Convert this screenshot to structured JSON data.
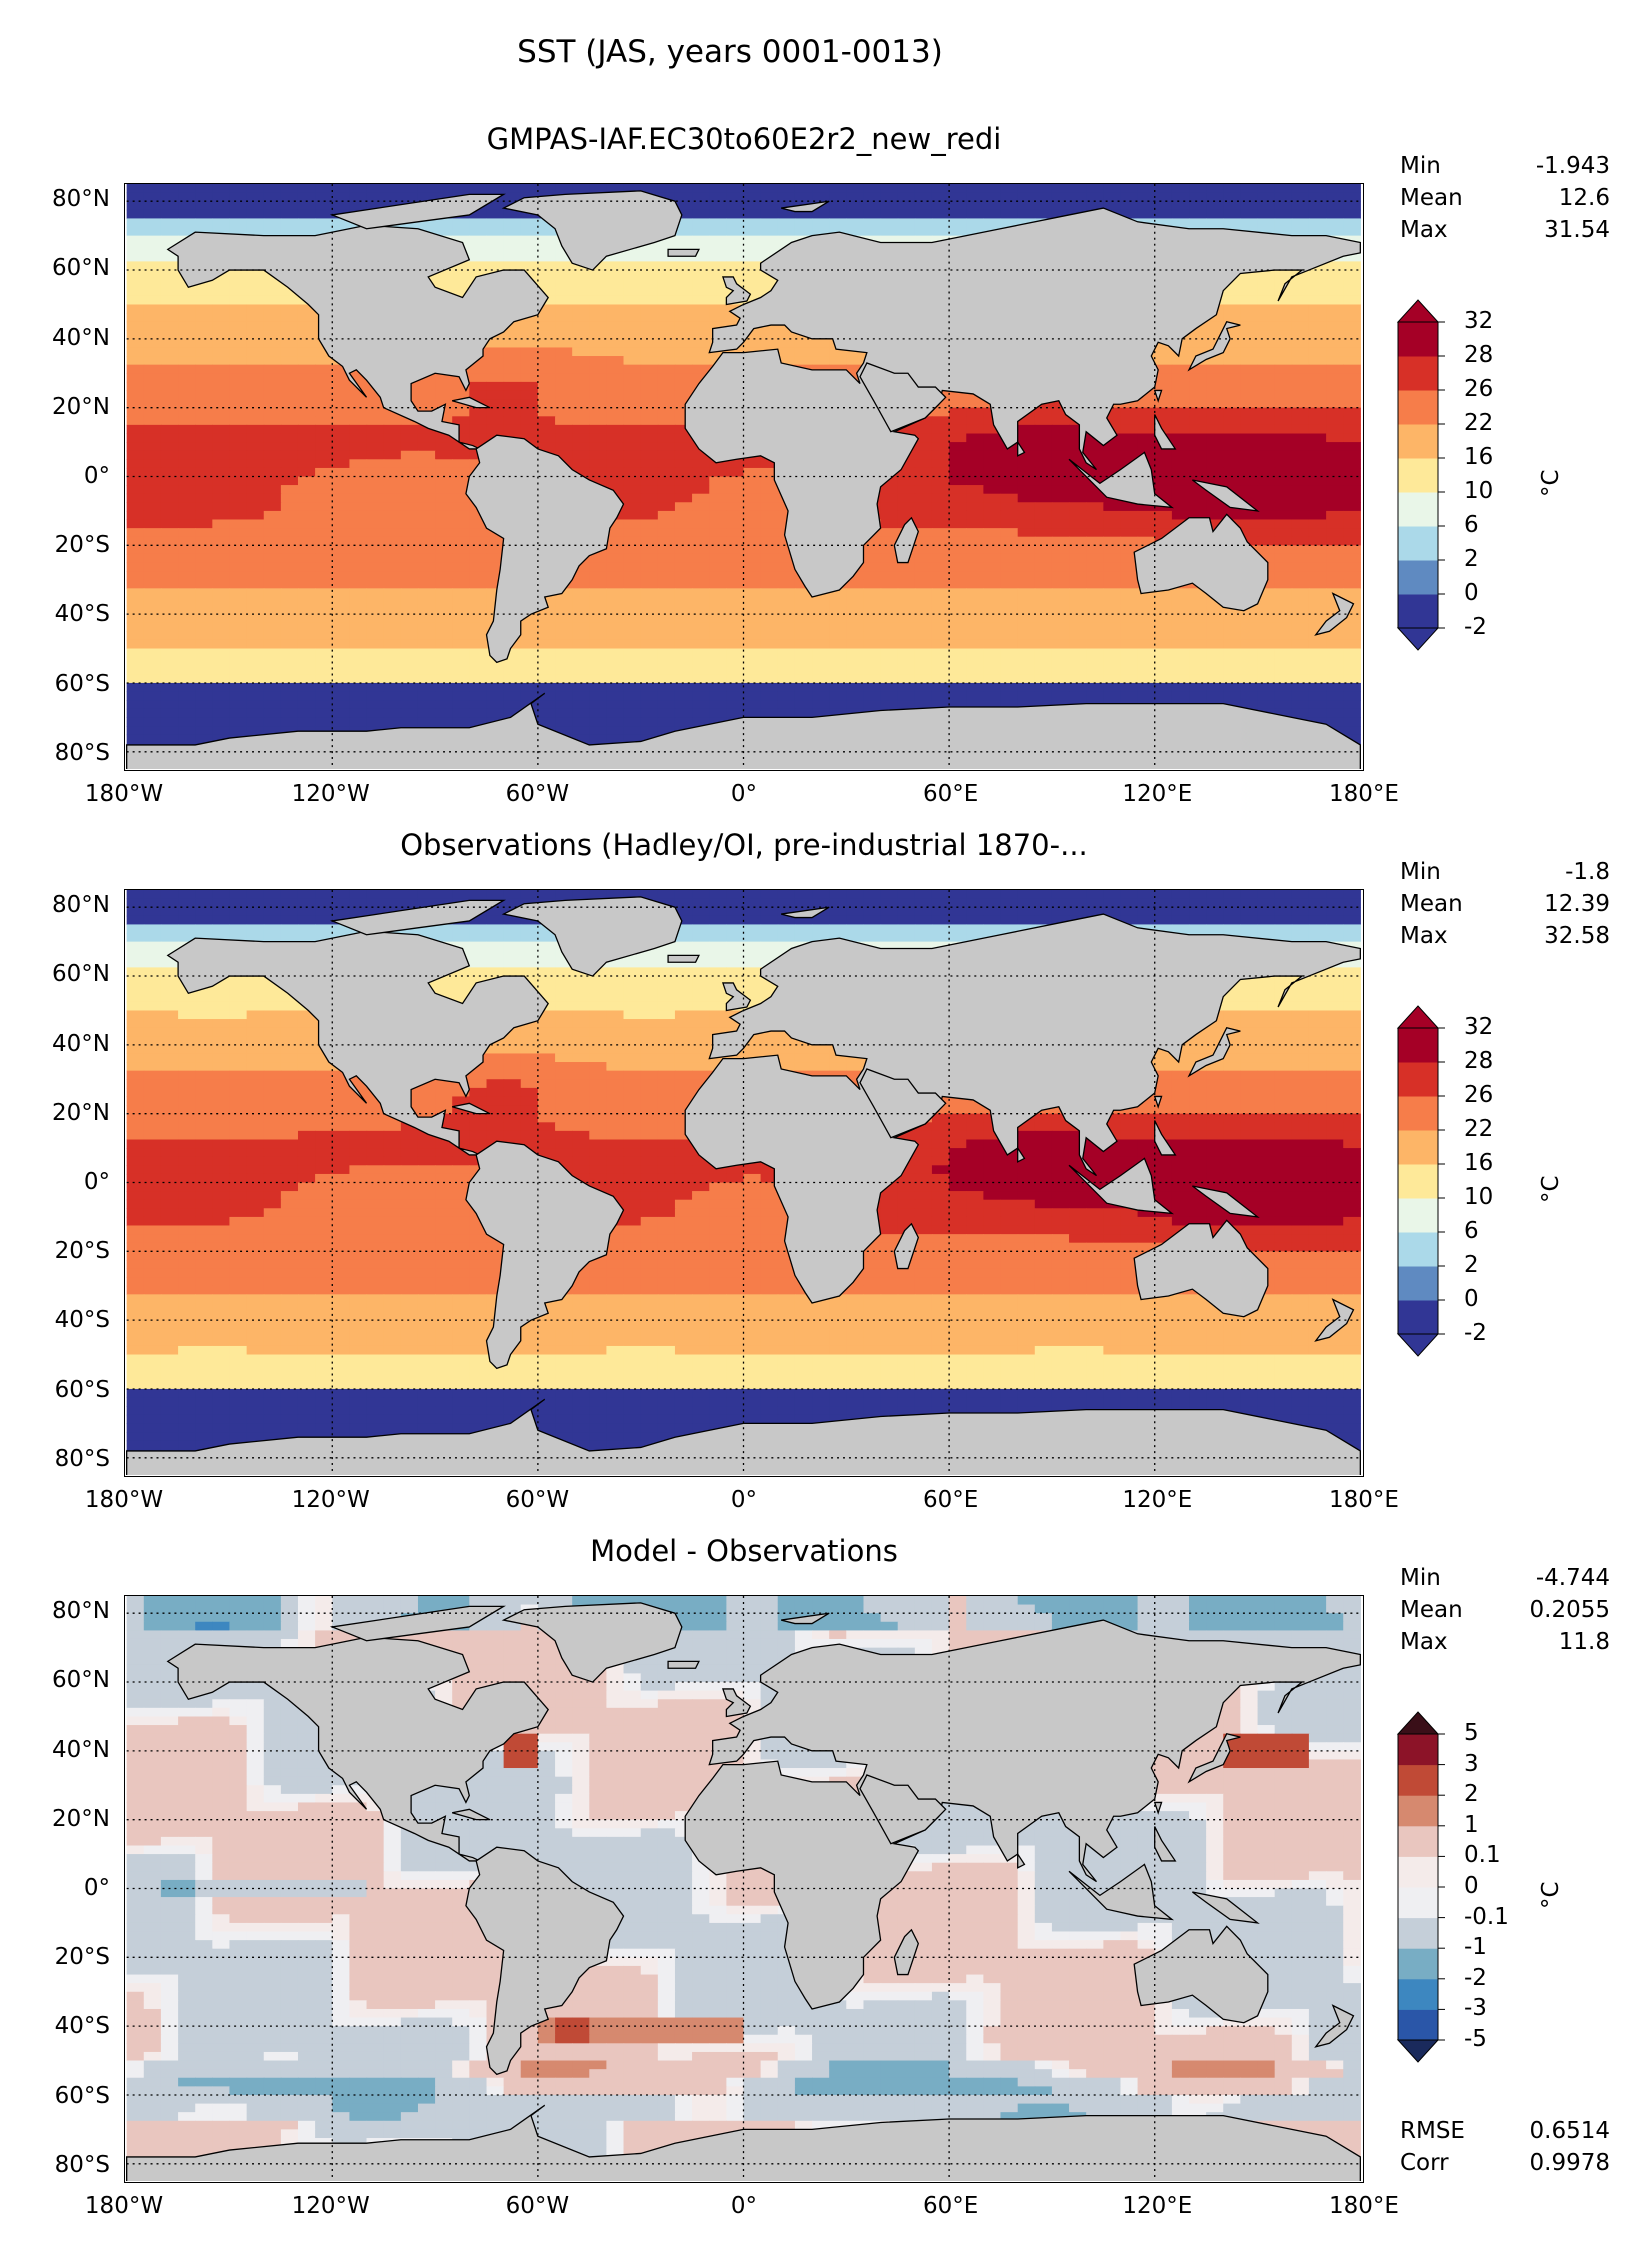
{
  "figure": {
    "suptitle": "SST (JAS, years 0001-0013)"
  },
  "chart_data": [
    {
      "type": "heatmap",
      "title": "GMPAS-IAF.EC30to60E2r2_new_redi",
      "stats": [
        {
          "label": "Min",
          "value": "-1.943"
        },
        {
          "label": "Mean",
          "value": "12.6"
        },
        {
          "label": "Max",
          "value": "31.54"
        }
      ],
      "colorbar": {
        "units": "°C",
        "levels": [
          "-2",
          "0",
          "2",
          "6",
          "10",
          "16",
          "22",
          "26",
          "28",
          "32"
        ],
        "colors": [
          "#313695",
          "#5f8ac1",
          "#abd9e9",
          "#e9f6e8",
          "#fee999",
          "#fdb567",
          "#f67d4a",
          "#d73027",
          "#a50026"
        ],
        "extend_low_color": "#313695",
        "extend_high_color": "#a50026"
      },
      "xticks": [
        "180°W",
        "120°W",
        "60°W",
        "0°",
        "60°E",
        "120°E",
        "180°E"
      ],
      "yticks": [
        "80°N",
        "60°N",
        "40°N",
        "20°N",
        "0°",
        "20°S",
        "40°S",
        "60°S",
        "80°S"
      ],
      "xlim": [
        -180,
        180
      ],
      "ylim": [
        -85,
        85
      ],
      "grid": true
    },
    {
      "type": "heatmap",
      "title": "Observations (Hadley/OI, pre-industrial 1870-...",
      "stats": [
        {
          "label": "Min",
          "value": "-1.8"
        },
        {
          "label": "Mean",
          "value": "12.39"
        },
        {
          "label": "Max",
          "value": "32.58"
        }
      ],
      "colorbar": {
        "units": "°C",
        "levels": [
          "-2",
          "0",
          "2",
          "6",
          "10",
          "16",
          "22",
          "26",
          "28",
          "32"
        ],
        "colors": [
          "#313695",
          "#5f8ac1",
          "#abd9e9",
          "#e9f6e8",
          "#fee999",
          "#fdb567",
          "#f67d4a",
          "#d73027",
          "#a50026"
        ],
        "extend_low_color": "#313695",
        "extend_high_color": "#a50026"
      },
      "xticks": [
        "180°W",
        "120°W",
        "60°W",
        "0°",
        "60°E",
        "120°E",
        "180°E"
      ],
      "yticks": [
        "80°N",
        "60°N",
        "40°N",
        "20°N",
        "0°",
        "20°S",
        "40°S",
        "60°S",
        "80°S"
      ],
      "xlim": [
        -180,
        180
      ],
      "ylim": [
        -85,
        85
      ],
      "grid": true
    },
    {
      "type": "heatmap",
      "title": "Model - Observations",
      "stats": [
        {
          "label": "Min",
          "value": "-4.744"
        },
        {
          "label": "Mean",
          "value": "0.2055"
        },
        {
          "label": "Max",
          "value": "11.8"
        }
      ],
      "extra_stats": [
        {
          "label": "RMSE",
          "value": "0.6514"
        },
        {
          "label": "Corr",
          "value": "0.9978"
        }
      ],
      "colorbar": {
        "units": "°C",
        "levels": [
          "-5",
          "-3",
          "-2",
          "-1",
          "-0.1",
          "0",
          "0.1",
          "1",
          "2",
          "3",
          "5"
        ],
        "colors": [
          "#2a56a8",
          "#3d87c0",
          "#78adc4",
          "#c5cfd9",
          "#efeff2",
          "#f4ebea",
          "#e9c6bf",
          "#d6896f",
          "#c04a36",
          "#8c1328"
        ],
        "extend_low_color": "#1a2a5c",
        "extend_high_color": "#3a0f18"
      },
      "xticks": [
        "180°W",
        "120°W",
        "60°W",
        "0°",
        "60°E",
        "120°E",
        "180°E"
      ],
      "yticks": [
        "80°N",
        "60°N",
        "40°N",
        "20°N",
        "0°",
        "20°S",
        "40°S",
        "60°S",
        "80°S"
      ],
      "xlim": [
        -180,
        180
      ],
      "ylim": [
        -85,
        85
      ],
      "grid": true
    }
  ]
}
